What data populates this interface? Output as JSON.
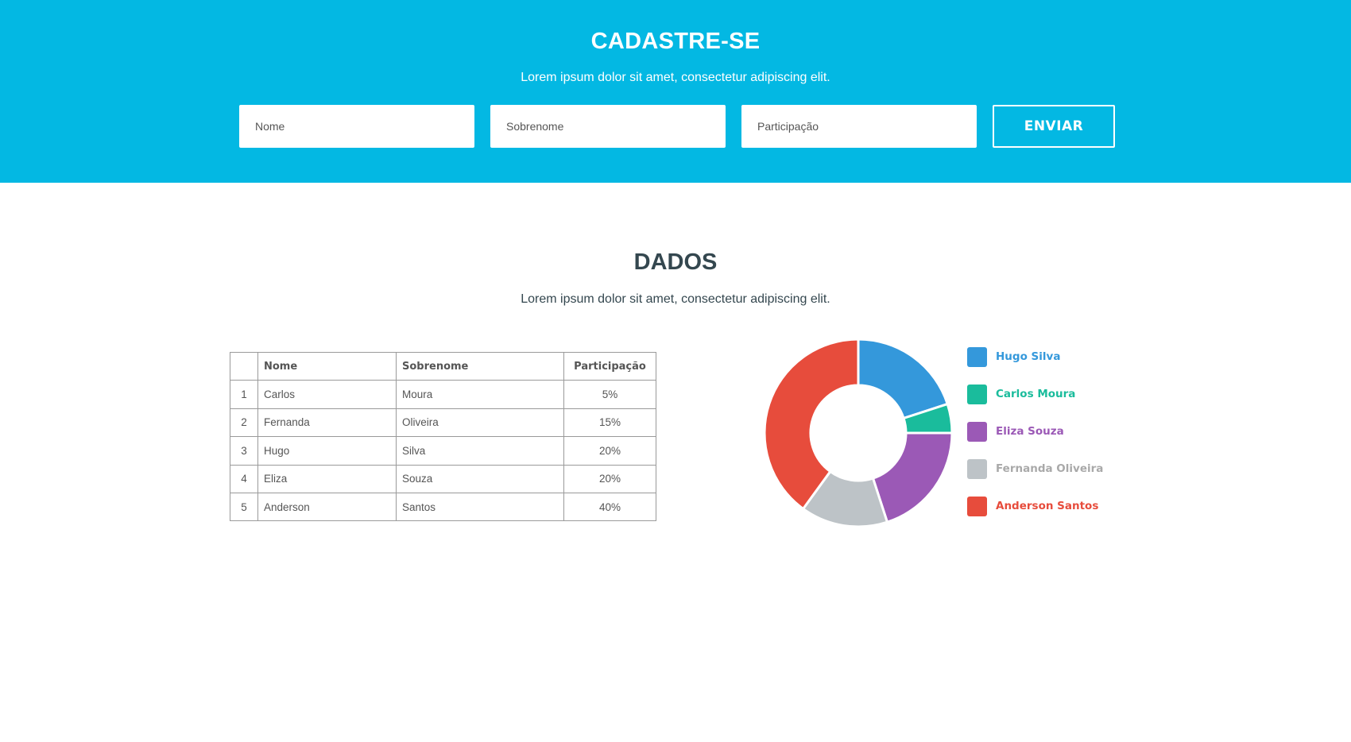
{
  "header": {
    "title": "CADASTRE-SE",
    "subtitle": "Lorem ipsum dolor sit amet, consectetur adipiscing elit."
  },
  "form": {
    "nome_placeholder": "Nome",
    "sobrenome_placeholder": "Sobrenome",
    "participacao_placeholder": "Participação",
    "submit_label": "ENVIAR"
  },
  "section": {
    "title": "DADOS",
    "subtitle": "Lorem ipsum dolor sit amet, consectetur adipiscing elit."
  },
  "table": {
    "headers": [
      "",
      "Nome",
      "Sobrenome",
      "Participação"
    ],
    "rows": [
      [
        "1",
        "Carlos",
        "Moura",
        "5%"
      ],
      [
        "2",
        "Fernanda",
        "Oliveira",
        "15%"
      ],
      [
        "3",
        "Hugo",
        "Silva",
        "20%"
      ],
      [
        "4",
        "Eliza",
        "Souza",
        "20%"
      ],
      [
        "5",
        "Anderson",
        "Santos",
        "40%"
      ]
    ]
  },
  "chart_data": {
    "type": "pie",
    "donut": true,
    "series": [
      {
        "name": "Hugo Silva",
        "value": 20,
        "color": "#3498db"
      },
      {
        "name": "Carlos Moura",
        "value": 5,
        "color": "#1abc9c"
      },
      {
        "name": "Eliza Souza",
        "value": 20,
        "color": "#9b59b6"
      },
      {
        "name": "Fernanda Oliveira",
        "value": 15,
        "color": "#bdc3c7"
      },
      {
        "name": "Anderson Santos",
        "value": 40,
        "color": "#e74c3c"
      }
    ],
    "legend_position": "right"
  },
  "colors": {
    "hero_background": "#03b8e3",
    "heading_text": "#34474f"
  }
}
